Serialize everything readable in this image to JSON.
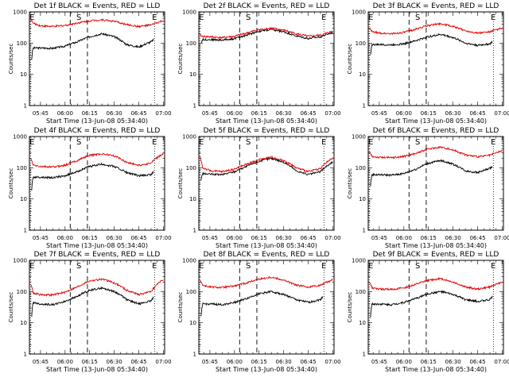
{
  "chart_data": [
    {
      "type": "line",
      "title": "Det 1f BLACK = Events, RED = LLD",
      "ylabel": "Counts/sec",
      "xlabel": "Start Time (13-Jun-08 05:34:40)",
      "yscale": "log",
      "ylim": [
        1,
        1000
      ],
      "xlim": [
        5.5,
        60.5
      ],
      "x_tick_labels": [
        "05:45",
        "06:00",
        "06:15",
        "06:30",
        "06:45",
        "07:00"
      ],
      "y_tick_labels": [
        "1",
        "10",
        "100",
        "1000"
      ],
      "markers": [
        {
          "label": "E",
          "x": 5.9
        },
        {
          "label": "S",
          "x": 25.6
        },
        {
          "label": "E",
          "x": 56.4
        }
      ],
      "series": [
        {
          "name": "Events",
          "color": "#000000",
          "x": [
            6.4,
            7,
            10,
            15,
            20,
            25,
            30,
            35,
            40,
            45,
            50,
            55,
            56
          ],
          "y": [
            30,
            70,
            70,
            68,
            80,
            110,
            160,
            200,
            160,
            90,
            75,
            110,
            130
          ]
        },
        {
          "name": "LLD",
          "color": "#e00000",
          "x": [
            6,
            7,
            10,
            15,
            20,
            25,
            30,
            35,
            40,
            45,
            50,
            55,
            60
          ],
          "y": [
            600,
            430,
            360,
            340,
            370,
            440,
            520,
            560,
            500,
            390,
            340,
            380,
            520
          ]
        }
      ]
    },
    {
      "type": "line",
      "title": "Det 2f BLACK = Events, RED = LLD",
      "ylabel": "Counts/sec",
      "xlabel": "Start Time (13-Jun-08 05:34:40)",
      "yscale": "log",
      "ylim": [
        1,
        1000
      ],
      "xlim": [
        5.5,
        60.5
      ],
      "x_tick_labels": [
        "05:45",
        "06:00",
        "06:15",
        "06:30",
        "06:45",
        "07:00"
      ],
      "y_tick_labels": [
        "1",
        "10",
        "100",
        "1000"
      ],
      "markers": [
        {
          "label": "E",
          "x": 5.9
        },
        {
          "label": "S",
          "x": 25.6
        },
        {
          "label": "E",
          "x": 56.4
        }
      ],
      "series": [
        {
          "name": "Events",
          "color": "#000000",
          "x": [
            6.4,
            7,
            10,
            15,
            20,
            25,
            30,
            35,
            40,
            45,
            50,
            55,
            60
          ],
          "y": [
            100,
            130,
            130,
            125,
            140,
            180,
            240,
            270,
            230,
            170,
            140,
            160,
            220
          ]
        },
        {
          "name": "LLD",
          "color": "#e00000",
          "x": [
            6,
            7,
            10,
            15,
            20,
            25,
            30,
            35,
            40,
            45,
            50,
            55,
            60
          ],
          "y": [
            180,
            165,
            160,
            150,
            165,
            210,
            270,
            300,
            260,
            200,
            165,
            180,
            240
          ]
        }
      ]
    },
    {
      "type": "line",
      "title": "Det 3f BLACK = Events, RED = LLD",
      "ylabel": "Counts/sec",
      "xlabel": "Start Time (13-Jun-08 05:34:40)",
      "yscale": "log",
      "ylim": [
        1,
        1000
      ],
      "xlim": [
        5.5,
        60.5
      ],
      "x_tick_labels": [
        "05:45",
        "06:00",
        "06:15",
        "06:30",
        "06:45",
        "07:00"
      ],
      "y_tick_labels": [
        "1",
        "10",
        "100",
        "1000"
      ],
      "markers": [
        {
          "label": "E",
          "x": 5.9
        },
        {
          "label": "S",
          "x": 25.6
        },
        {
          "label": "E",
          "x": 56.4
        }
      ],
      "series": [
        {
          "name": "Events",
          "color": "#000000",
          "x": [
            6.4,
            7,
            10,
            15,
            20,
            25,
            30,
            35,
            40,
            45,
            50,
            55,
            56
          ],
          "y": [
            40,
            90,
            90,
            88,
            95,
            120,
            160,
            190,
            150,
            100,
            85,
            95,
            110
          ]
        },
        {
          "name": "LLD",
          "color": "#e00000",
          "x": [
            6,
            7,
            10,
            15,
            20,
            25,
            30,
            35,
            40,
            45,
            50,
            55,
            60
          ],
          "y": [
            300,
            230,
            210,
            200,
            220,
            280,
            370,
            420,
            340,
            250,
            210,
            230,
            300
          ]
        }
      ]
    },
    {
      "type": "line",
      "title": "Det 4f BLACK = Events, RED = LLD",
      "ylabel": "Counts/sec",
      "xlabel": "Start Time (13-Jun-08 05:34:40)",
      "yscale": "log",
      "ylim": [
        1,
        1000
      ],
      "xlim": [
        5.5,
        60.5
      ],
      "x_tick_labels": [
        "05:45",
        "06:00",
        "06:15",
        "06:30",
        "06:45",
        "07:00"
      ],
      "y_tick_labels": [
        "1",
        "10",
        "100",
        "1000"
      ],
      "markers": [
        {
          "label": "E",
          "x": 5.9
        },
        {
          "label": "S",
          "x": 25.6
        },
        {
          "label": "E",
          "x": 56.4
        }
      ],
      "series": [
        {
          "name": "Events",
          "color": "#000000",
          "x": [
            6.4,
            7,
            10,
            15,
            20,
            25,
            30,
            35,
            40,
            45,
            50,
            55,
            56
          ],
          "y": [
            20,
            50,
            50,
            48,
            55,
            75,
            110,
            130,
            110,
            70,
            55,
            60,
            75
          ]
        },
        {
          "name": "LLD",
          "color": "#e00000",
          "x": [
            6,
            7,
            10,
            15,
            20,
            25,
            30,
            35,
            40,
            45,
            50,
            55,
            60
          ],
          "y": [
            200,
            120,
            110,
            105,
            120,
            170,
            250,
            280,
            240,
            150,
            120,
            140,
            280
          ]
        }
      ]
    },
    {
      "type": "line",
      "title": "Det 5f BLACK = Events, RED = LLD",
      "ylabel": "Counts/sec",
      "xlabel": "Start Time (13-Jun-08 05:34:40)",
      "yscale": "log",
      "ylim": [
        1,
        1000
      ],
      "xlim": [
        5.5,
        60.5
      ],
      "x_tick_labels": [
        "05:45",
        "06:00",
        "06:15",
        "06:30",
        "06:45",
        "07:00"
      ],
      "y_tick_labels": [
        "1",
        "10",
        "100",
        "1000"
      ],
      "markers": [
        {
          "label": "E",
          "x": 5.9
        },
        {
          "label": "S",
          "x": 25.6
        },
        {
          "label": "E",
          "x": 56.4
        }
      ],
      "series": [
        {
          "name": "Events",
          "color": "#000000",
          "x": [
            6.4,
            7,
            10,
            15,
            20,
            25,
            30,
            35,
            40,
            45,
            50,
            55,
            60
          ],
          "y": [
            40,
            65,
            62,
            60,
            75,
            110,
            160,
            200,
            150,
            80,
            60,
            75,
            150
          ]
        },
        {
          "name": "LLD",
          "color": "#e00000",
          "x": [
            6,
            7,
            10,
            15,
            20,
            25,
            30,
            35,
            40,
            45,
            50,
            55,
            60
          ],
          "y": [
            230,
            100,
            80,
            75,
            90,
            130,
            180,
            220,
            170,
            100,
            75,
            95,
            200
          ]
        }
      ]
    },
    {
      "type": "line",
      "title": "Det 6f BLACK = Events, RED = LLD",
      "ylabel": "Counts/sec",
      "xlabel": "Start Time (13-Jun-08 05:34:40)",
      "yscale": "log",
      "ylim": [
        1,
        1000
      ],
      "xlim": [
        5.5,
        60.5
      ],
      "x_tick_labels": [
        "05:45",
        "06:00",
        "06:15",
        "06:30",
        "06:45",
        "07:00"
      ],
      "y_tick_labels": [
        "1",
        "10",
        "100",
        "1000"
      ],
      "markers": [
        {
          "label": "E",
          "x": 5.9
        },
        {
          "label": "S",
          "x": 25.6
        },
        {
          "label": "E",
          "x": 56.4
        }
      ],
      "series": [
        {
          "name": "Events",
          "color": "#000000",
          "x": [
            6.4,
            7,
            10,
            15,
            20,
            25,
            30,
            35,
            40,
            45,
            50,
            55,
            56
          ],
          "y": [
            25,
            60,
            60,
            58,
            65,
            90,
            140,
            170,
            130,
            80,
            70,
            95,
            110
          ]
        },
        {
          "name": "LLD",
          "color": "#e00000",
          "x": [
            6,
            7,
            10,
            15,
            20,
            25,
            30,
            35,
            40,
            45,
            50,
            55,
            60
          ],
          "y": [
            320,
            230,
            215,
            210,
            230,
            290,
            400,
            460,
            370,
            260,
            225,
            250,
            350
          ]
        }
      ]
    },
    {
      "type": "line",
      "title": "Det 7f BLACK = Events, RED = LLD",
      "ylabel": "Counts/sec",
      "xlabel": "Start Time (13-Jun-08 05:34:40)",
      "yscale": "log",
      "ylim": [
        1,
        1000
      ],
      "xlim": [
        5.5,
        60.5
      ],
      "x_tick_labels": [
        "05:45",
        "06:00",
        "06:15",
        "06:30",
        "06:45",
        "07:00"
      ],
      "y_tick_labels": [
        "1",
        "10",
        "100",
        "1000"
      ],
      "markers": [
        {
          "label": "E",
          "x": 5.9
        },
        {
          "label": "S",
          "x": 25.6
        },
        {
          "label": "E",
          "x": 56.4
        }
      ],
      "series": [
        {
          "name": "Events",
          "color": "#000000",
          "x": [
            6.4,
            7,
            10,
            15,
            20,
            25,
            30,
            35,
            40,
            45,
            50,
            55,
            56
          ],
          "y": [
            15,
            45,
            40,
            38,
            48,
            70,
            110,
            130,
            100,
            55,
            40,
            50,
            65
          ]
        },
        {
          "name": "LLD",
          "color": "#e00000",
          "x": [
            6,
            7,
            10,
            15,
            20,
            25,
            30,
            35,
            40,
            45,
            50,
            55,
            60
          ],
          "y": [
            180,
            90,
            80,
            78,
            95,
            140,
            220,
            250,
            190,
            110,
            80,
            100,
            240
          ]
        }
      ]
    },
    {
      "type": "line",
      "title": "Det 8f BLACK = Events, RED = LLD",
      "ylabel": "Counts/sec",
      "xlabel": "Start Time (13-Jun-08 05:34:40)",
      "yscale": "log",
      "ylim": [
        1,
        1000
      ],
      "xlim": [
        5.5,
        60.5
      ],
      "x_tick_labels": [
        "05:45",
        "06:00",
        "06:15",
        "06:30",
        "06:45",
        "07:00"
      ],
      "y_tick_labels": [
        "1",
        "10",
        "100",
        "1000"
      ],
      "markers": [
        {
          "label": "E",
          "x": 5.9
        },
        {
          "label": "S",
          "x": 25.6
        },
        {
          "label": "E",
          "x": 56.4
        }
      ],
      "series": [
        {
          "name": "Events",
          "color": "#000000",
          "x": [
            6.4,
            7,
            10,
            15,
            20,
            25,
            30,
            35,
            40,
            45,
            50,
            55,
            56
          ],
          "y": [
            15,
            40,
            40,
            38,
            45,
            60,
            85,
            100,
            80,
            55,
            45,
            55,
            70
          ]
        },
        {
          "name": "LLD",
          "color": "#e00000",
          "x": [
            6,
            7,
            10,
            15,
            20,
            25,
            30,
            35,
            40,
            45,
            50,
            55,
            60
          ],
          "y": [
            240,
            160,
            140,
            135,
            150,
            190,
            250,
            290,
            230,
            160,
            140,
            160,
            240
          ]
        }
      ]
    },
    {
      "type": "line",
      "title": "Det 9f BLACK = Events, RED = LLD",
      "ylabel": "Counts/sec",
      "xlabel": "Start Time (13-Jun-08 05:34:40)",
      "yscale": "log",
      "ylim": [
        1,
        1000
      ],
      "xlim": [
        5.5,
        60.5
      ],
      "x_tick_labels": [
        "05:45",
        "06:00",
        "06:15",
        "06:30",
        "06:45",
        "07:00"
      ],
      "y_tick_labels": [
        "1",
        "10",
        "100",
        "1000"
      ],
      "markers": [
        {
          "label": "E",
          "x": 5.9
        },
        {
          "label": "S",
          "x": 25.6
        },
        {
          "label": "E",
          "x": 56.4
        }
      ],
      "series": [
        {
          "name": "Events",
          "color": "#000000",
          "x": [
            6.4,
            7,
            10,
            15,
            20,
            25,
            30,
            35,
            40,
            45,
            50,
            55,
            56
          ],
          "y": [
            15,
            40,
            40,
            38,
            45,
            60,
            85,
            100,
            80,
            55,
            48,
            55,
            70
          ]
        },
        {
          "name": "LLD",
          "color": "#e00000",
          "x": [
            6,
            7,
            10,
            15,
            20,
            25,
            30,
            35,
            40,
            45,
            50,
            55,
            60
          ],
          "y": [
            200,
            130,
            120,
            118,
            130,
            170,
            230,
            260,
            200,
            140,
            120,
            140,
            200
          ]
        }
      ]
    }
  ]
}
